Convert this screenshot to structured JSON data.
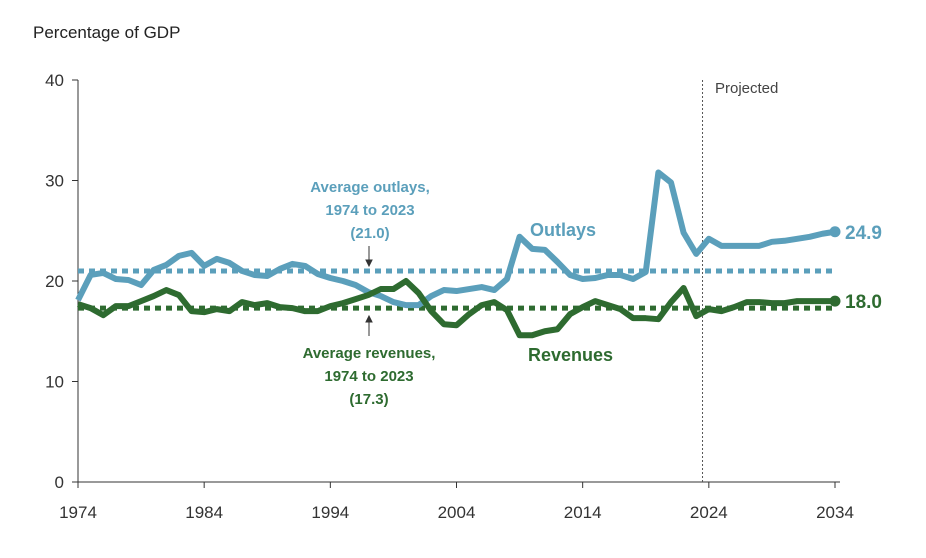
{
  "chart_data": {
    "type": "line",
    "ylabel": "Percentage of GDP",
    "ylim": [
      0,
      40
    ],
    "yticks": [
      "0",
      "10",
      "20",
      "30",
      "40"
    ],
    "xlim": [
      1974,
      2034
    ],
    "xticks": [
      "1974",
      "1984",
      "1994",
      "2004",
      "2014",
      "2024",
      "2034"
    ],
    "projected_label": "Projected",
    "projection_start": 2023.5,
    "x": [
      1974,
      1975,
      1976,
      1977,
      1978,
      1979,
      1980,
      1981,
      1982,
      1983,
      1984,
      1985,
      1986,
      1987,
      1988,
      1989,
      1990,
      1991,
      1992,
      1993,
      1994,
      1995,
      1996,
      1997,
      1998,
      1999,
      2000,
      2001,
      2002,
      2003,
      2004,
      2005,
      2006,
      2007,
      2008,
      2009,
      2010,
      2011,
      2012,
      2013,
      2014,
      2015,
      2016,
      2017,
      2018,
      2019,
      2020,
      2021,
      2022,
      2023,
      2024,
      2025,
      2026,
      2027,
      2028,
      2029,
      2030,
      2031,
      2032,
      2033,
      2034
    ],
    "series": [
      {
        "name": "Outlays",
        "color": "#5b9fbb",
        "end_label": "24.9",
        "values": [
          18.1,
          20.6,
          20.8,
          20.2,
          20.1,
          19.6,
          21.1,
          21.6,
          22.5,
          22.8,
          21.5,
          22.2,
          21.8,
          21.0,
          20.6,
          20.5,
          21.2,
          21.7,
          21.5,
          20.7,
          20.3,
          20.0,
          19.6,
          18.9,
          18.5,
          17.9,
          17.6,
          17.6,
          18.5,
          19.1,
          19.0,
          19.2,
          19.4,
          19.1,
          20.2,
          24.4,
          23.2,
          23.1,
          21.9,
          20.6,
          20.2,
          20.3,
          20.6,
          20.6,
          20.2,
          20.9,
          30.8,
          29.8,
          24.8,
          22.7,
          24.2,
          23.5,
          23.5,
          23.5,
          23.5,
          23.9,
          24.0,
          24.2,
          24.4,
          24.7,
          24.9
        ]
      },
      {
        "name": "Revenues",
        "color": "#2e6b30",
        "end_label": "18.0",
        "values": [
          17.7,
          17.3,
          16.6,
          17.5,
          17.5,
          18.0,
          18.5,
          19.1,
          18.6,
          17.0,
          16.9,
          17.2,
          17.0,
          17.9,
          17.6,
          17.8,
          17.4,
          17.3,
          17.0,
          17.0,
          17.5,
          17.8,
          18.2,
          18.6,
          19.2,
          19.2,
          20.0,
          18.8,
          17.0,
          15.7,
          15.6,
          16.7,
          17.6,
          17.9,
          17.1,
          14.6,
          14.6,
          15.0,
          15.2,
          16.7,
          17.4,
          18.0,
          17.6,
          17.2,
          16.3,
          16.3,
          16.2,
          17.9,
          19.3,
          16.5,
          17.2,
          17.0,
          17.4,
          17.9,
          17.9,
          17.8,
          17.8,
          18.0,
          18.0,
          18.0,
          18.0
        ]
      }
    ],
    "averages": [
      {
        "value": 21.0,
        "color": "#5b9fbb",
        "lines": [
          "Average outlays,",
          "1974 to 2023",
          "(21.0)"
        ]
      },
      {
        "value": 17.3,
        "color": "#2e6b30",
        "lines": [
          "Average revenues,",
          "1974 to 2023",
          "(17.3)"
        ]
      }
    ]
  }
}
